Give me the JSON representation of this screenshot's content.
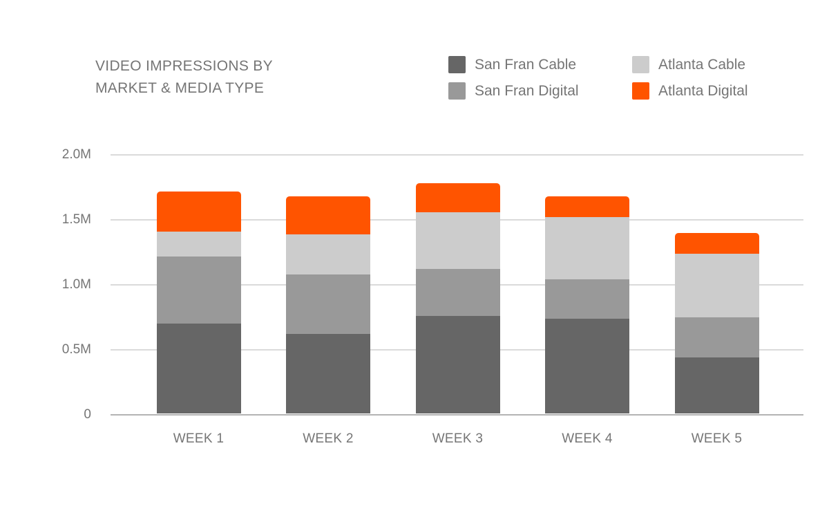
{
  "page": {
    "background_color": "#ffffff",
    "text_color": "#757575",
    "gridline_color": "#dadada",
    "baseline_color": "#b3b3b3"
  },
  "chart_data": {
    "type": "bar",
    "stacked": true,
    "title": "VIDEO IMPRESSIONS BY MARKET & MEDIA TYPE",
    "title_lines": [
      "VIDEO IMPRESSIONS BY",
      "MARKET & MEDIA TYPE"
    ],
    "categories": [
      "WEEK 1",
      "WEEK 2",
      "WEEK 3",
      "WEEK 4",
      "WEEK 5"
    ],
    "value_unit": "M",
    "series": [
      {
        "name": "San Fran Cable",
        "color": "#666666",
        "values": [
          0.69,
          0.61,
          0.75,
          0.73,
          0.43
        ]
      },
      {
        "name": "San Fran Digital",
        "color": "#999999",
        "values": [
          0.52,
          0.46,
          0.36,
          0.3,
          0.31
        ]
      },
      {
        "name": "Atlanta Cable",
        "color": "#cccccc",
        "values": [
          0.19,
          0.31,
          0.44,
          0.48,
          0.49
        ]
      },
      {
        "name": "Atlanta Digital",
        "color": "#ff5400",
        "values": [
          0.31,
          0.29,
          0.22,
          0.16,
          0.16
        ]
      }
    ],
    "stack_totals": [
      1.71,
      1.67,
      1.77,
      1.67,
      1.39
    ],
    "ylim": [
      0,
      2.0
    ],
    "y_ticks": [
      {
        "value": 0.0,
        "label": "0"
      },
      {
        "value": 0.5,
        "label": "0.5M"
      },
      {
        "value": 1.0,
        "label": "1.0M"
      },
      {
        "value": 1.5,
        "label": "1.5M"
      },
      {
        "value": 2.0,
        "label": "2.0M"
      }
    ],
    "grid": true,
    "legend_position": "top-right",
    "legend_columns": [
      [
        0,
        1
      ],
      [
        2,
        3
      ]
    ]
  }
}
